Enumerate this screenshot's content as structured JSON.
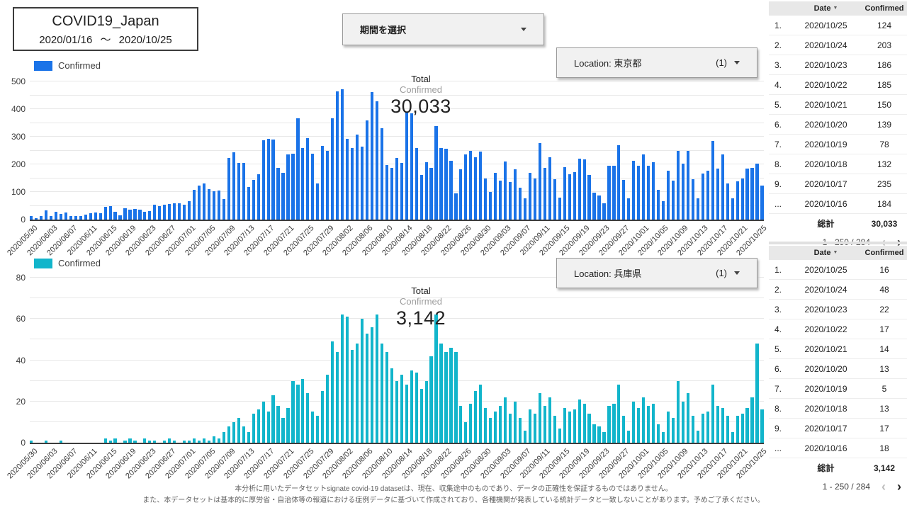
{
  "title": {
    "text": "COVID19_Japan",
    "date_range": "2020/01/16 〜 2020/10/25"
  },
  "period_selector": {
    "label": "期間を選択"
  },
  "filters": [
    {
      "label": "Location:",
      "value": "東京都",
      "count": "(1)"
    },
    {
      "label": "Location:",
      "value": "兵庫県",
      "count": "(1)"
    }
  ],
  "chart_data": [
    {
      "type": "bar",
      "name": "daily-confirmed-tokyo",
      "series_label": "Confirmed",
      "location": "東京都",
      "color": "#1a73e8",
      "total_label": "Total",
      "total_sublabel": "Confirmed",
      "total_value": "30,033",
      "ylim": [
        0,
        500
      ],
      "y_ticks": [
        0,
        100,
        200,
        300,
        400,
        500
      ],
      "grid_step": 50,
      "x_start": "2020/05/30",
      "x_end": "2020/10/25",
      "x_tick_every": 4,
      "tick_labels": [
        "2020/05/30",
        "2020/06/03",
        "2020/06/07",
        "2020/06/11",
        "2020/06/15",
        "2020/06/19",
        "2020/06/23",
        "2020/06/27",
        "2020/07/01",
        "2020/07/05",
        "2020/07/09",
        "2020/07/13",
        "2020/07/17",
        "2020/07/21",
        "2020/07/25",
        "2020/07/29",
        "2020/08/02",
        "2020/08/06",
        "2020/08/10",
        "2020/08/14",
        "2020/08/18",
        "2020/08/22",
        "2020/08/26",
        "2020/08/30",
        "2020/09/03",
        "2020/09/07",
        "2020/09/11",
        "2020/09/15",
        "2020/09/19",
        "2020/09/23",
        "2020/09/27",
        "2020/10/01",
        "2020/10/05",
        "2020/10/09",
        "2020/10/13",
        "2020/10/17",
        "2020/10/21",
        "2020/10/25"
      ],
      "values": [
        14,
        5,
        13,
        34,
        12,
        28,
        20,
        26,
        14,
        13,
        12,
        18,
        22,
        25,
        24,
        47,
        48,
        27,
        16,
        41,
        35,
        39,
        35,
        29,
        31,
        55,
        48,
        54,
        57,
        60,
        58,
        54,
        67,
        107,
        124,
        131,
        111,
        102,
        106,
        75,
        224,
        243,
        206,
        206,
        119,
        143,
        165,
        286,
        293,
        290,
        188,
        168,
        237,
        238,
        366,
        260,
        295,
        239,
        131,
        266,
        250,
        367,
        463,
        472,
        292,
        258,
        309,
        263,
        360,
        462,
        429,
        331,
        197,
        188,
        222,
        206,
        389,
        385,
        260,
        161,
        207,
        186,
        339,
        258,
        256,
        212,
        95,
        182,
        236,
        250,
        226,
        247,
        148,
        100,
        170,
        141,
        211,
        136,
        181,
        116,
        77,
        170,
        149,
        276,
        187,
        226,
        146,
        80,
        191,
        163,
        171,
        220,
        218,
        162,
        98,
        88,
        59,
        195,
        195,
        270,
        144,
        78,
        212,
        194,
        235,
        196,
        207,
        107,
        66,
        177,
        142,
        248,
        203,
        249,
        146,
        78,
        166,
        177,
        284,
        184,
        235,
        132,
        78,
        139,
        150,
        185,
        186,
        203,
        124
      ]
    },
    {
      "type": "bar",
      "name": "daily-confirmed-hyogo",
      "series_label": "Confirmed",
      "location": "兵庫県",
      "color": "#12b5cb",
      "total_label": "Total",
      "total_sublabel": "Confirmed",
      "total_value": "3,142",
      "ylim": [
        0,
        80
      ],
      "y_ticks": [
        0,
        20,
        40,
        60,
        80
      ],
      "grid_step": 10,
      "x_start": "2020/05/30",
      "x_end": "2020/10/25",
      "x_tick_every": 4,
      "tick_labels": [
        "2020/05/30",
        "2020/06/03",
        "2020/06/07",
        "2020/06/11",
        "2020/06/15",
        "2020/06/19",
        "2020/06/23",
        "2020/06/27",
        "2020/07/01",
        "2020/07/05",
        "2020/07/09",
        "2020/07/13",
        "2020/07/17",
        "2020/07/21",
        "2020/07/25",
        "2020/07/29",
        "2020/08/02",
        "2020/08/06",
        "2020/08/10",
        "2020/08/14",
        "2020/08/18",
        "2020/08/22",
        "2020/08/26",
        "2020/08/30",
        "2020/09/03",
        "2020/09/07",
        "2020/09/11",
        "2020/09/15",
        "2020/09/19",
        "2020/09/23",
        "2020/09/27",
        "2020/10/01",
        "2020/10/05",
        "2020/10/09",
        "2020/10/13",
        "2020/10/17",
        "2020/10/21",
        "2020/10/25"
      ],
      "values": [
        1,
        0,
        0,
        1,
        0,
        0,
        1,
        0,
        0,
        0,
        0,
        0,
        0,
        0,
        0,
        2,
        1,
        2,
        0,
        1,
        2,
        1,
        0,
        2,
        1,
        1,
        0,
        1,
        2,
        1,
        0,
        1,
        1,
        2,
        1,
        2,
        1,
        3,
        2,
        5,
        8,
        10,
        12,
        8,
        5,
        14,
        16,
        20,
        15,
        23,
        18,
        12,
        17,
        30,
        28,
        31,
        24,
        15,
        13,
        25,
        33,
        49,
        44,
        62,
        61,
        45,
        48,
        60,
        53,
        56,
        62,
        48,
        44,
        36,
        30,
        33,
        28,
        35,
        34,
        26,
        30,
        42,
        62,
        48,
        44,
        46,
        44,
        18,
        10,
        19,
        25,
        28,
        17,
        12,
        15,
        18,
        22,
        14,
        20,
        12,
        6,
        16,
        14,
        24,
        18,
        22,
        13,
        7,
        17,
        15,
        16,
        21,
        19,
        14,
        9,
        8,
        5,
        18,
        19,
        28,
        13,
        6,
        20,
        17,
        22,
        18,
        19,
        9,
        5,
        15,
        12,
        30,
        20,
        24,
        13,
        6,
        14,
        15,
        28,
        18,
        17,
        13,
        5,
        13,
        14,
        17,
        22,
        48,
        16
      ]
    }
  ],
  "tables": [
    {
      "headers": [
        "Date",
        "Confirmed"
      ],
      "sort_icon": "▼",
      "rows": [
        [
          "1.",
          "2020/10/25",
          "124"
        ],
        [
          "2.",
          "2020/10/24",
          "203"
        ],
        [
          "3.",
          "2020/10/23",
          "186"
        ],
        [
          "4.",
          "2020/10/22",
          "185"
        ],
        [
          "5.",
          "2020/10/21",
          "150"
        ],
        [
          "6.",
          "2020/10/20",
          "139"
        ],
        [
          "7.",
          "2020/10/19",
          "78"
        ],
        [
          "8.",
          "2020/10/18",
          "132"
        ],
        [
          "9.",
          "2020/10/17",
          "235"
        ],
        [
          "...",
          "2020/10/16",
          "184"
        ]
      ],
      "total_label": "総計",
      "total_value": "30,033",
      "pagination": "1 - 250 / 284"
    },
    {
      "headers": [
        "Date",
        "Confirmed"
      ],
      "sort_icon": "▼",
      "rows": [
        [
          "1.",
          "2020/10/25",
          "16"
        ],
        [
          "2.",
          "2020/10/24",
          "48"
        ],
        [
          "3.",
          "2020/10/23",
          "22"
        ],
        [
          "4.",
          "2020/10/22",
          "17"
        ],
        [
          "5.",
          "2020/10/21",
          "14"
        ],
        [
          "6.",
          "2020/10/20",
          "13"
        ],
        [
          "7.",
          "2020/10/19",
          "5"
        ],
        [
          "8.",
          "2020/10/18",
          "13"
        ],
        [
          "9.",
          "2020/10/17",
          "17"
        ],
        [
          "...",
          "2020/10/16",
          "18"
        ]
      ],
      "total_label": "総計",
      "total_value": "3,142",
      "pagination": "1 - 250 / 284"
    }
  ],
  "footer": {
    "line1": "本分析に用いたデータセットsignate covid-19 datasetは、現在、収集途中のものであり、データの正確性を保証するものではありません。",
    "line2": "また、本データセットは基本的に厚労省・自治体等の報道における症例データに基づいて作成されており、各種機関が発表している統計データと一致しないことがあります。予めご了承ください。"
  }
}
